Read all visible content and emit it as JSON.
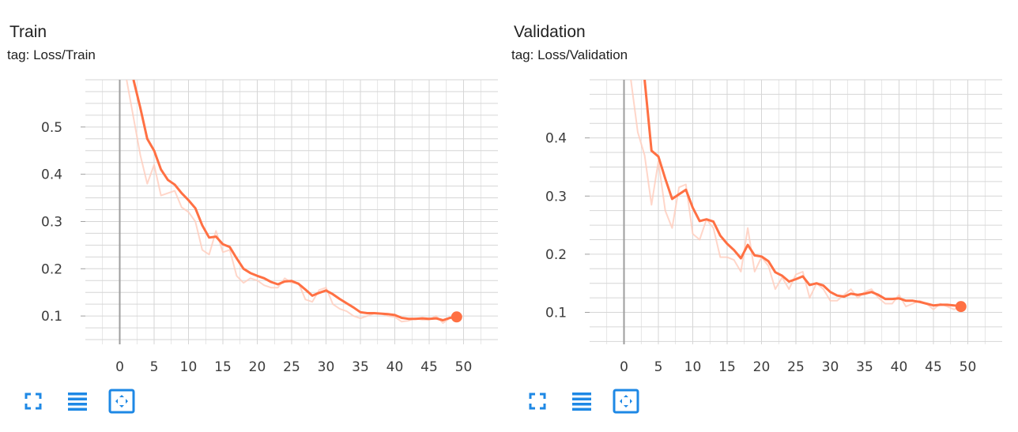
{
  "colors": {
    "accent": "#ff7043",
    "accent_raw": "#ffccbc",
    "grid": "#d6d6d6",
    "axis": "#9e9e9e",
    "icon": "#1e88e5",
    "text": "#212121"
  },
  "cards": [
    {
      "title": "Train",
      "tag": "tag: Loss/Train",
      "toolbar": [
        "fullscreen-icon",
        "list-icon",
        "fit-domain-icon"
      ],
      "chart_data": {
        "type": "line",
        "title": "Train",
        "xlabel": "",
        "ylabel": "",
        "xlim": [
          -5,
          55
        ],
        "ylim": [
          0.04,
          0.6
        ],
        "xticks": [
          0,
          5,
          10,
          15,
          20,
          25,
          30,
          35,
          40,
          45,
          50
        ],
        "xtick_labels": [
          "0",
          "5",
          "10",
          "15",
          "20",
          "25",
          "30",
          "35",
          "40",
          "45",
          "50"
        ],
        "yticks": [
          0.1,
          0.2,
          0.3,
          0.4,
          0.5
        ],
        "ytick_labels": [
          "0.1",
          "0.2",
          "0.3",
          "0.4",
          "0.5"
        ],
        "grid": true,
        "series": [
          {
            "role": "raw",
            "x": [
              1,
              2,
              3,
              4,
              5,
              6,
              7,
              8,
              9,
              10,
              11,
              12,
              13,
              14,
              15,
              16,
              17,
              18,
              19,
              20,
              21,
              22,
              23,
              24,
              25,
              26,
              27,
              28,
              29,
              30,
              31,
              32,
              33,
              34,
              35,
              36,
              37,
              38,
              39,
              40,
              41,
              42,
              43,
              44,
              45,
              46,
              47,
              48,
              49
            ],
            "y": [
              0.6,
              0.52,
              0.44,
              0.38,
              0.42,
              0.355,
              0.36,
              0.365,
              0.33,
              0.32,
              0.3,
              0.24,
              0.23,
              0.28,
              0.235,
              0.24,
              0.185,
              0.17,
              0.18,
              0.175,
              0.165,
              0.16,
              0.16,
              0.18,
              0.17,
              0.17,
              0.135,
              0.13,
              0.155,
              0.16,
              0.125,
              0.115,
              0.11,
              0.1,
              0.095,
              0.1,
              0.105,
              0.105,
              0.1,
              0.098,
              0.088,
              0.09,
              0.095,
              0.092,
              0.092,
              0.1,
              0.085,
              0.095,
              0.1
            ]
          },
          {
            "role": "smoothed",
            "x": [
              2,
              3,
              4,
              5,
              6,
              7,
              8,
              9,
              10,
              11,
              12,
              13,
              14,
              15,
              16,
              17,
              18,
              19,
              20,
              21,
              22,
              23,
              24,
              25,
              26,
              27,
              28,
              29,
              30,
              31,
              32,
              33,
              34,
              35,
              36,
              37,
              38,
              39,
              40,
              41,
              42,
              43,
              44,
              45,
              46,
              47,
              48,
              49
            ],
            "y": [
              0.6,
              0.54,
              0.475,
              0.45,
              0.41,
              0.388,
              0.378,
              0.36,
              0.345,
              0.328,
              0.292,
              0.266,
              0.268,
              0.252,
              0.246,
              0.222,
              0.2,
              0.191,
              0.185,
              0.18,
              0.172,
              0.167,
              0.173,
              0.174,
              0.168,
              0.156,
              0.143,
              0.149,
              0.154,
              0.146,
              0.136,
              0.127,
              0.118,
              0.108,
              0.106,
              0.106,
              0.105,
              0.104,
              0.102,
              0.096,
              0.094,
              0.094,
              0.095,
              0.094,
              0.095,
              0.091,
              0.096,
              0.098
            ]
          }
        ]
      }
    },
    {
      "title": "Validation",
      "tag": "tag: Loss/Validation",
      "toolbar": [
        "fullscreen-icon",
        "list-icon",
        "fit-domain-icon"
      ],
      "chart_data": {
        "type": "line",
        "title": "Validation",
        "xlabel": "",
        "ylabel": "",
        "xlim": [
          -5,
          55
        ],
        "ylim": [
          0.045,
          0.5
        ],
        "xticks": [
          0,
          5,
          10,
          15,
          20,
          25,
          30,
          35,
          40,
          45,
          50
        ],
        "xtick_labels": [
          "0",
          "5",
          "10",
          "15",
          "20",
          "25",
          "30",
          "35",
          "40",
          "45",
          "50"
        ],
        "yticks": [
          0.1,
          0.2,
          0.3,
          0.4
        ],
        "ytick_labels": [
          "0.1",
          "0.2",
          "0.3",
          "0.4"
        ],
        "grid": true,
        "series": [
          {
            "role": "raw",
            "x": [
              1,
              2,
              3,
              4,
              5,
              6,
              7,
              8,
              9,
              10,
              11,
              12,
              13,
              14,
              15,
              16,
              17,
              18,
              19,
              20,
              21,
              22,
              23,
              24,
              25,
              26,
              27,
              28,
              29,
              30,
              31,
              32,
              33,
              34,
              35,
              36,
              37,
              38,
              39,
              40,
              41,
              42,
              43,
              44,
              45,
              46,
              47,
              48,
              49
            ],
            "y": [
              0.5,
              0.41,
              0.37,
              0.285,
              0.36,
              0.275,
              0.245,
              0.315,
              0.32,
              0.235,
              0.225,
              0.26,
              0.245,
              0.195,
              0.195,
              0.19,
              0.17,
              0.245,
              0.17,
              0.195,
              0.18,
              0.14,
              0.16,
              0.14,
              0.165,
              0.17,
              0.125,
              0.15,
              0.14,
              0.12,
              0.12,
              0.13,
              0.14,
              0.125,
              0.135,
              0.14,
              0.125,
              0.115,
              0.115,
              0.13,
              0.11,
              0.115,
              0.12,
              0.115,
              0.105,
              0.115,
              0.11,
              0.105,
              0.11
            ]
          },
          {
            "role": "smoothed",
            "x": [
              3,
              4,
              5,
              6,
              7,
              8,
              9,
              10,
              11,
              12,
              13,
              14,
              15,
              16,
              17,
              18,
              19,
              20,
              21,
              22,
              23,
              24,
              25,
              26,
              27,
              28,
              29,
              30,
              31,
              32,
              33,
              34,
              35,
              36,
              37,
              38,
              39,
              40,
              41,
              42,
              43,
              44,
              45,
              46,
              47,
              48,
              49
            ],
            "y": [
              0.5,
              0.378,
              0.368,
              0.33,
              0.295,
              0.303,
              0.311,
              0.28,
              0.257,
              0.26,
              0.256,
              0.232,
              0.218,
              0.207,
              0.193,
              0.216,
              0.198,
              0.196,
              0.188,
              0.169,
              0.163,
              0.153,
              0.157,
              0.162,
              0.147,
              0.15,
              0.146,
              0.135,
              0.129,
              0.127,
              0.132,
              0.13,
              0.132,
              0.135,
              0.13,
              0.123,
              0.123,
              0.124,
              0.12,
              0.12,
              0.118,
              0.115,
              0.112,
              0.113,
              0.113,
              0.112,
              0.11
            ]
          }
        ]
      }
    }
  ]
}
